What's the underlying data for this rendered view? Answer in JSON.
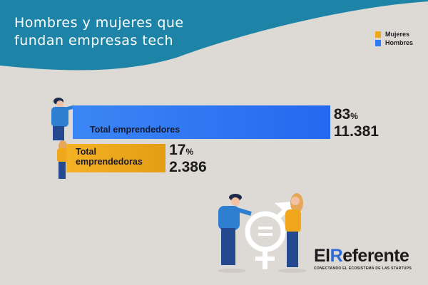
{
  "chart_data": {
    "type": "bar",
    "orientation": "horizontal",
    "title": "Hombres y mujeres que fundan empresas tech",
    "title_lines": [
      "Hombres y mujeres que",
      "fundan empresas tech"
    ],
    "legend": {
      "position": "top-right",
      "entries": [
        {
          "name": "Mujeres",
          "color": "#f0a71c"
        },
        {
          "name": "Hombres",
          "color": "#2f7af5"
        }
      ]
    },
    "categories": [
      "Total emprendedores",
      "Total emprendedoras"
    ],
    "series": [
      {
        "category": "Total emprendedores",
        "group": "Hombres",
        "percent": 83,
        "count": 11381,
        "count_label": "11.381",
        "color": "#2f7af5"
      },
      {
        "category": "Total emprendedoras",
        "group": "Mujeres",
        "percent": 17,
        "count": 2386,
        "count_label": "2.386",
        "color": "#f0a71c"
      }
    ],
    "percent_symbol": "%",
    "grid": false
  },
  "colors": {
    "header": "#1e84a7",
    "background": "#dddad6"
  },
  "brand": {
    "name_part1": "El",
    "name_part2": "R",
    "name_part3": "eferente",
    "tagline": "CONECTANDO EL ECOSISTEMA DE LAS STARTUPS"
  }
}
